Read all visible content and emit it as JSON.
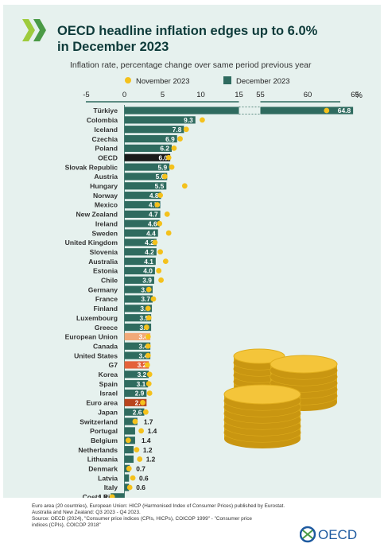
{
  "title_line1": "OECD headline inflation edges up to 6.0%",
  "title_line2": "in December 2023",
  "subtitle": "Inflation rate, percentage change over same period previous year",
  "colors": {
    "background": "#e6f1ee",
    "december_bar": "#2f6b5f",
    "oecd_bar": "#1a1a1a",
    "eu_bar": "#f2a978",
    "g7_bar": "#e4613a",
    "euro_area_bar": "#b8441c",
    "november_dot": "#f4c11c",
    "title": "#0e3b3a",
    "logo_blue": "#1e5aa0"
  },
  "icons": [
    "oecd-chevrons-logo-icon",
    "coin-stack-icon",
    "oecd-globe-icon"
  ],
  "chart_data": {
    "type": "bar",
    "orientation": "horizontal",
    "axis_ticks": [
      "-5",
      "0",
      "5",
      "10",
      "15",
      "55",
      "60",
      "65"
    ],
    "axis_unit": "%",
    "axis_break": [
      15,
      55
    ],
    "xlim": [
      -5,
      65
    ],
    "legend": {
      "position": "top",
      "november": "November 2023",
      "december": "December 2023"
    },
    "categories": [
      "Türkiye",
      "Colombia",
      "Iceland",
      "Czechia",
      "Poland",
      "OECD",
      "Slovak Republic",
      "Austria",
      "Hungary",
      "Norway",
      "Mexico",
      "New Zealand",
      "Ireland",
      "Sweden",
      "United Kingdom",
      "Slovenia",
      "Australia",
      "Estonia",
      "Chile",
      "Germany",
      "France",
      "Finland",
      "Luxembourg",
      "Greece",
      "European Union",
      "Canada",
      "United States",
      "G7",
      "Korea",
      "Spain",
      "Israel",
      "Euro area",
      "Japan",
      "Switzerland",
      "Portugal",
      "Belgium",
      "Netherlands",
      "Lithuania",
      "Denmark",
      "Latvia",
      "Italy",
      "Costa Rica"
    ],
    "december_labels": [
      "64.8",
      "9.3",
      "7.8",
      "6.9",
      "6.2",
      "6.0",
      "5.9",
      "5.6",
      "5.5",
      "4.8",
      "4.7",
      "4.7",
      "4.6",
      "4.4",
      "4.2",
      "4.2",
      "4.1",
      "4.0",
      "3.9",
      "3.7",
      "3.7",
      "3.6",
      "3.5",
      "3.5",
      "3.4",
      "3.4",
      "3.4",
      "3.2",
      "3.2",
      "3.1",
      "2.9",
      "2.9",
      "2.6",
      "1.7",
      "1.4",
      "1.4",
      "1.2",
      "1.2",
      "0.7",
      "0.6",
      "0.6",
      "- 1.8"
    ],
    "series": [
      {
        "name": "December 2023",
        "values": [
          64.8,
          9.3,
          7.8,
          6.9,
          6.2,
          6.0,
          5.9,
          5.6,
          5.5,
          4.8,
          4.7,
          4.7,
          4.6,
          4.4,
          4.2,
          4.2,
          4.1,
          4.0,
          3.9,
          3.7,
          3.7,
          3.6,
          3.5,
          3.5,
          3.4,
          3.4,
          3.4,
          3.2,
          3.2,
          3.1,
          2.9,
          2.9,
          2.6,
          1.7,
          1.4,
          1.4,
          1.2,
          1.2,
          0.7,
          0.6,
          0.6,
          -1.8
        ]
      },
      {
        "name": "November 2023",
        "values": [
          62.0,
          10.2,
          8.1,
          7.3,
          6.5,
          5.8,
          6.2,
          5.3,
          7.9,
          4.7,
          4.3,
          5.6,
          4.6,
          5.8,
          4.0,
          4.7,
          5.4,
          4.5,
          4.8,
          3.2,
          3.8,
          3.1,
          3.2,
          2.9,
          3.1,
          3.1,
          3.1,
          3.0,
          3.3,
          3.2,
          3.3,
          2.4,
          2.8,
          1.4,
          2.2,
          0.5,
          1.6,
          2.0,
          0.6,
          1.1,
          0.7,
          -1.6
        ]
      }
    ]
  },
  "footer": {
    "line1": "Euro area (20 countries), European Union: HICP (Harmonised Index of Consumer Prices) published by Eurostat.",
    "line2": "Australia and New Zealand: Q3 2023 - Q4 2023.",
    "line3": "Source: OECD (2024), \"Consumer price indices (CPIs, HICPs), COICOP 1999\" - \"Consumer price",
    "line4": "indices (CPIs), COICOP 2018\""
  },
  "logo_text": "OECD"
}
